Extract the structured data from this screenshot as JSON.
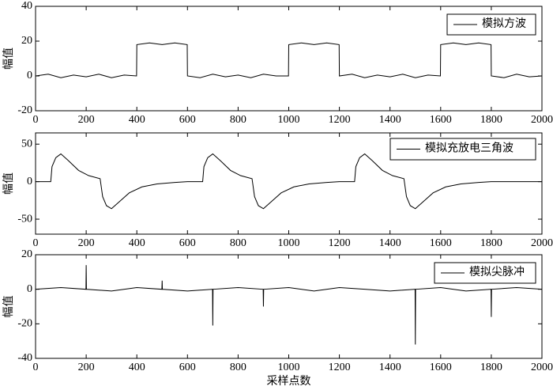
{
  "chart_data": [
    {
      "type": "line",
      "ylabel": "幅值",
      "x": [
        0,
        50,
        100,
        150,
        200,
        250,
        300,
        350,
        399,
        400,
        450,
        500,
        550,
        599,
        600,
        650,
        700,
        750,
        800,
        850,
        900,
        950,
        999,
        1000,
        1050,
        1100,
        1150,
        1199,
        1200,
        1250,
        1300,
        1350,
        1400,
        1450,
        1500,
        1550,
        1599,
        1600,
        1650,
        1700,
        1750,
        1799,
        1800,
        1850,
        1900,
        1950,
        2000
      ],
      "series": [
        {
          "name": "模拟方波",
          "color": "#000000",
          "values": [
            0,
            1,
            -1,
            0.5,
            -0.5,
            1,
            -1,
            0.5,
            0,
            18,
            19,
            18,
            19,
            18,
            0,
            -1,
            1,
            -0.5,
            0.5,
            -1,
            1,
            0,
            0,
            18,
            19,
            18,
            19,
            18,
            0,
            1,
            -1,
            0.5,
            -0.5,
            1,
            -1,
            0.5,
            0,
            18,
            19,
            18,
            19,
            18,
            0,
            -1,
            1,
            -0.5,
            0
          ]
        }
      ],
      "xlim": [
        0,
        2000
      ],
      "xticks": [
        0,
        200,
        400,
        600,
        800,
        1000,
        1200,
        1400,
        1600,
        1800,
        2000
      ],
      "ylim": [
        -20,
        40
      ],
      "yticks": [
        -20,
        0,
        20,
        40
      ]
    },
    {
      "type": "line",
      "ylabel": "幅值",
      "x": [
        0,
        60,
        65,
        80,
        100,
        130,
        170,
        210,
        255,
        265,
        280,
        300,
        330,
        370,
        420,
        480,
        550,
        600,
        660,
        665,
        680,
        700,
        730,
        770,
        810,
        855,
        865,
        880,
        900,
        930,
        970,
        1020,
        1080,
        1150,
        1200,
        1260,
        1265,
        1280,
        1300,
        1330,
        1370,
        1410,
        1455,
        1465,
        1480,
        1500,
        1530,
        1570,
        1620,
        1680,
        1750,
        1800,
        1900,
        2000
      ],
      "series": [
        {
          "name": "模拟充放电三角波",
          "color": "#000000",
          "values": [
            0,
            0,
            20,
            32,
            37,
            28,
            15,
            8,
            4,
            -20,
            -32,
            -36,
            -27,
            -15,
            -7,
            -3,
            -1,
            0,
            0,
            20,
            32,
            37,
            28,
            15,
            8,
            4,
            -20,
            -32,
            -36,
            -27,
            -15,
            -7,
            -3,
            -1,
            0,
            0,
            20,
            32,
            37,
            28,
            15,
            8,
            4,
            -20,
            -32,
            -36,
            -27,
            -15,
            -7,
            -3,
            -1,
            0,
            0,
            0
          ]
        }
      ],
      "xlim": [
        0,
        2000
      ],
      "xticks": [
        0,
        200,
        400,
        600,
        800,
        1000,
        1200,
        1400,
        1600,
        1800,
        2000
      ],
      "ylim": [
        -70,
        65
      ],
      "yticks": [
        -50,
        0,
        50
      ]
    },
    {
      "type": "line",
      "ylabel": "幅值",
      "xlabel": "采样点数",
      "x": [
        0,
        100,
        199,
        200,
        201,
        300,
        400,
        499,
        500,
        501,
        600,
        699,
        700,
        701,
        800,
        899,
        900,
        901,
        1000,
        1100,
        1200,
        1300,
        1400,
        1499,
        1500,
        1501,
        1600,
        1700,
        1799,
        1800,
        1801,
        1900,
        2000
      ],
      "series": [
        {
          "name": "模拟尖脉冲",
          "color": "#000000",
          "values": [
            0,
            1,
            0,
            14,
            0,
            -1,
            1,
            0,
            5,
            0,
            -1,
            0,
            -21,
            0,
            1,
            0,
            -10,
            0,
            1,
            -1,
            1,
            0,
            -1,
            0,
            -32,
            0,
            1,
            -1,
            0,
            -16,
            0,
            1,
            0
          ]
        }
      ],
      "xlim": [
        0,
        2000
      ],
      "xticks": [
        0,
        200,
        400,
        600,
        800,
        1000,
        1200,
        1400,
        1600,
        1800,
        2000
      ],
      "ylim": [
        -40,
        20
      ],
      "yticks": [
        -40,
        -20,
        0,
        20
      ]
    }
  ]
}
